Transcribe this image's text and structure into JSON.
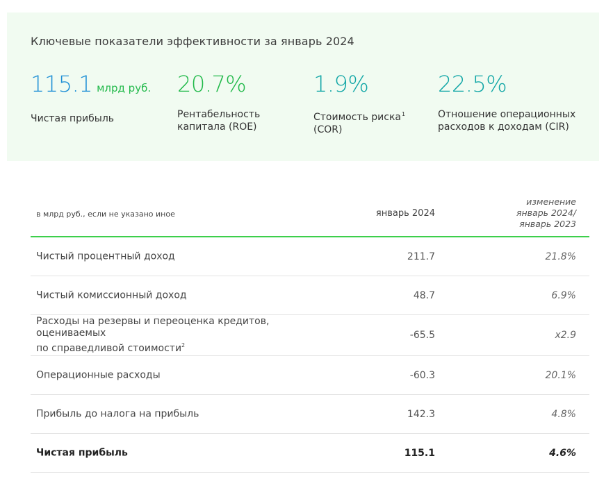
{
  "kpi": {
    "title": "Ключевые показатели эффективности за январь 2024",
    "items": [
      {
        "value": "115.1",
        "unit": "млрд руб.",
        "label_line1": "Чистая прибыль",
        "label_line2": "",
        "footnote": "",
        "color": "#1d8fd6"
      },
      {
        "value": "20.7%",
        "unit": "",
        "label_line1": "Рентабельность",
        "label_line2": "капитала (ROE)",
        "footnote": "",
        "color": "#21b94a"
      },
      {
        "value": "1.9%",
        "unit": "",
        "label_line1": "Стоимость риска",
        "label_line2": "(COR)",
        "footnote": "1",
        "color": "#10a6a6"
      },
      {
        "value": "22.5%",
        "unit": "",
        "label_line1": "Отношение операционных",
        "label_line2": "расходов к доходам (CIR)",
        "footnote": "",
        "color": "#10a6a6"
      }
    ]
  },
  "table": {
    "header": {
      "label": "в млрд руб., если не указано иное",
      "jan": "январь 2024",
      "change_line1": "изменение",
      "change_line2": "январь 2024/",
      "change_line3": "январь 2023"
    },
    "rows": [
      {
        "label": "Чистый процентный доход",
        "jan": "211.7",
        "change": "21.8%"
      },
      {
        "label": "Чистый комиссионный доход",
        "jan": "48.7",
        "change": "6.9%"
      },
      {
        "label_line1": "Расходы на резервы и переоценка кредитов,",
        "label_line2": "оцениваемых",
        "label_line3": "по справедливой стоимости",
        "footnote": "2",
        "jan": "-65.5",
        "change": "x2.9"
      },
      {
        "label": "Операционные расходы",
        "jan": "-60.3",
        "change": "20.1%"
      },
      {
        "label": "Прибыль до налога на прибыль",
        "jan": "142.3",
        "change": "4.8%"
      },
      {
        "label": "Чистая прибыль",
        "jan": "115.1",
        "change": "4.6%"
      }
    ]
  }
}
